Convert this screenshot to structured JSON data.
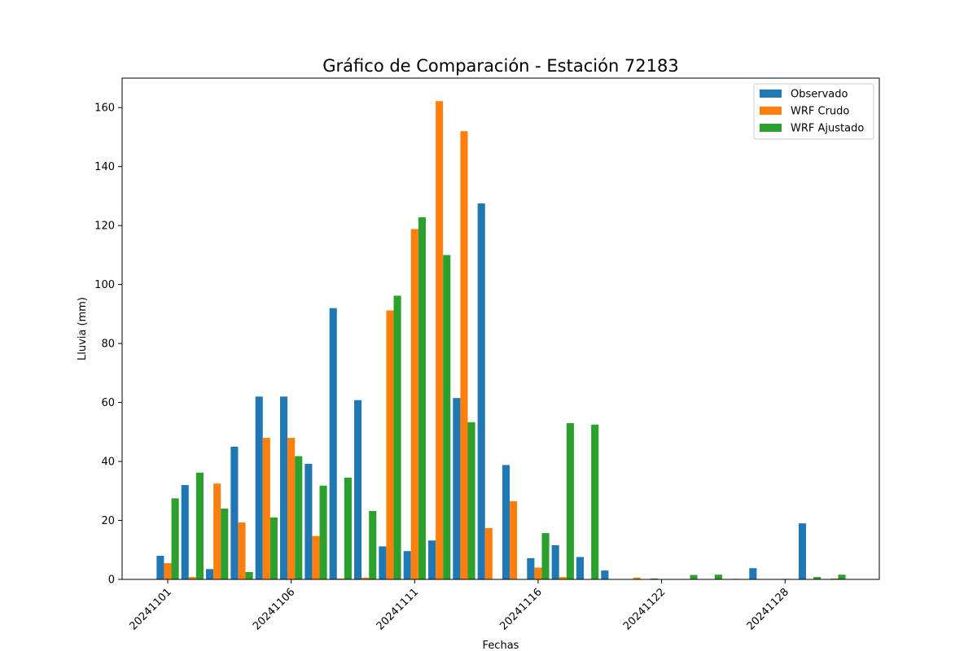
{
  "chart_data": {
    "type": "bar",
    "title": "Gráfico de Comparación - Estación 72183",
    "xlabel": "Fechas",
    "ylabel": "Lluvia (mm)",
    "ylim": [
      0,
      170
    ],
    "y_ticks": [
      0,
      20,
      40,
      60,
      80,
      100,
      120,
      140,
      160
    ],
    "x_tick_labels": [
      {
        "label": "20241101",
        "index": 0
      },
      {
        "label": "20241106",
        "index": 5
      },
      {
        "label": "20241111",
        "index": 10
      },
      {
        "label": "20241116",
        "index": 15
      },
      {
        "label": "20241122",
        "index": 20
      },
      {
        "label": "20241128",
        "index": 25
      }
    ],
    "grid": false,
    "legend_position": "top-right",
    "series": [
      {
        "name": "Observado",
        "color": "#1f77b4",
        "values": [
          8.0,
          32.0,
          3.5,
          45.0,
          62.0,
          62.0,
          39.2,
          92.0,
          60.8,
          11.2,
          9.6,
          13.2,
          61.5,
          127.5,
          38.8,
          7.2,
          11.6,
          7.6,
          3.0,
          0.0,
          0.3,
          0.0,
          0.0,
          0.0,
          3.8,
          0.0,
          19.0,
          0.0
        ]
      },
      {
        "name": "WRF Crudo",
        "color": "#ff7f0e",
        "values": [
          5.5,
          0.8,
          32.5,
          19.3,
          48.0,
          48.0,
          14.7,
          0.3,
          0.6,
          91.2,
          118.8,
          162.2,
          152.0,
          17.4,
          26.5,
          4.0,
          0.8,
          0.0,
          0.0,
          0.6,
          0.0,
          0.0,
          0.0,
          0.2,
          0.0,
          0.2,
          0.0,
          0.3
        ]
      },
      {
        "name": "WRF Ajustado",
        "color": "#2ca02c",
        "values": [
          27.5,
          36.2,
          24.0,
          2.5,
          21.0,
          41.8,
          31.8,
          34.5,
          23.2,
          96.2,
          122.8,
          110.0,
          53.3,
          0.0,
          0.0,
          15.7,
          53.0,
          52.5,
          0.0,
          0.0,
          0.0,
          1.5,
          1.6,
          0.0,
          0.0,
          0.0,
          0.8,
          1.6
        ]
      }
    ]
  }
}
